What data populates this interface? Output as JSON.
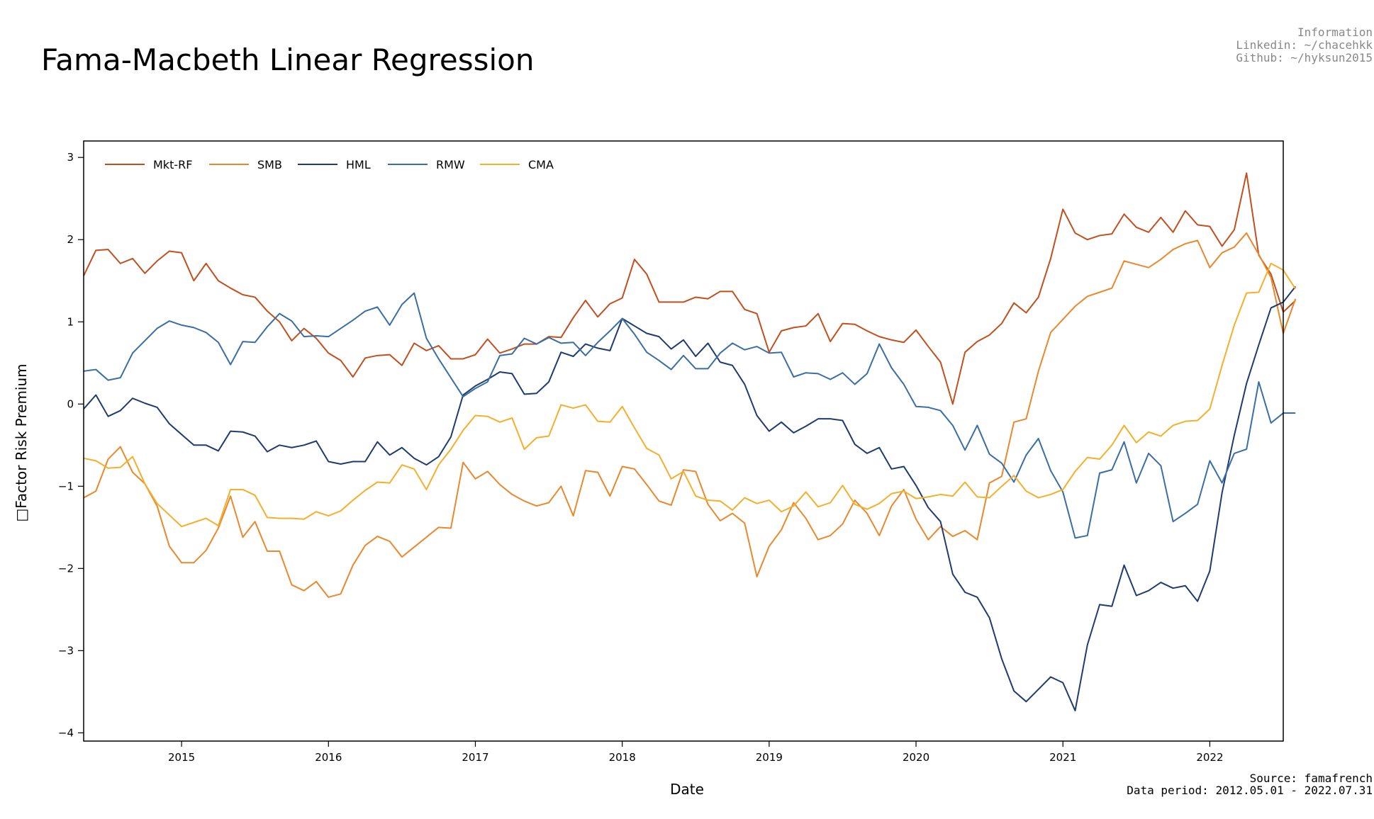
{
  "title": "Fama-Macbeth Linear Regression",
  "info": {
    "heading": "Information",
    "linkedin": "Linkedin: ~/chacehkk",
    "github": "Github: ~/hyksun2015"
  },
  "footer": {
    "source": "Source: famafrench",
    "period": "Data period: 2012.05.01 - 2022.07.31"
  },
  "chart_data": {
    "type": "line",
    "title": "Fama-Macbeth Linear Regression",
    "xlabel": "Date",
    "ylabel": "□Factor Risk Premium",
    "xlim": [
      "2014-05",
      "2022-07"
    ],
    "ylim": [
      -4.1,
      3.2
    ],
    "yticks": [
      3,
      2,
      1,
      0,
      -1,
      -2,
      -3,
      -4
    ],
    "ytick_labels": [
      "3",
      "2",
      "1",
      "0",
      "−1",
      "−2",
      "−3",
      "−4"
    ],
    "xticks": [
      "2015-01",
      "2016-01",
      "2017-01",
      "2018-01",
      "2019-01",
      "2020-01",
      "2021-01",
      "2022-01"
    ],
    "xtick_labels": [
      "2015",
      "2016",
      "2017",
      "2018",
      "2019",
      "2020",
      "2021",
      "2022"
    ],
    "x_start": "2014-05",
    "x_step": "1 month",
    "grid": false,
    "legend": "top-left",
    "series": [
      {
        "name": "Mkt-RF",
        "color": "#c0501f",
        "values": [
          1.56,
          1.87,
          1.88,
          1.71,
          1.77,
          1.59,
          1.74,
          1.86,
          1.84,
          1.5,
          1.71,
          1.5,
          1.41,
          1.33,
          1.3,
          1.13,
          1.0,
          0.77,
          0.92,
          0.8,
          0.62,
          0.53,
          0.33,
          0.56,
          0.59,
          0.6,
          0.47,
          0.74,
          0.65,
          0.71,
          0.55,
          0.55,
          0.6,
          0.79,
          0.62,
          0.67,
          0.73,
          0.73,
          0.82,
          0.81,
          1.05,
          1.26,
          1.06,
          1.22,
          1.29,
          1.76,
          1.58,
          1.24,
          1.24,
          1.24,
          1.3,
          1.28,
          1.37,
          1.37,
          1.15,
          1.1,
          0.63,
          0.89,
          0.93,
          0.95,
          1.1,
          0.76,
          0.98,
          0.97,
          0.89,
          0.82,
          0.78,
          0.75,
          0.9,
          0.7,
          0.51,
          0.0,
          0.63,
          0.76,
          0.84,
          0.98,
          1.23,
          1.11,
          1.3,
          1.77,
          2.37,
          2.08,
          2.0,
          2.05,
          2.07,
          2.31,
          2.15,
          2.09,
          2.27,
          2.09,
          2.35,
          2.18,
          2.16,
          1.92,
          2.12,
          2.81,
          1.81,
          1.58,
          1.12,
          1.26
        ]
      },
      {
        "name": "SMB",
        "color": "#e8892e",
        "values": [
          -1.14,
          -1.06,
          -0.67,
          -0.52,
          -0.83,
          -0.97,
          -1.24,
          -1.73,
          -1.93,
          -1.93,
          -1.78,
          -1.51,
          -1.12,
          -1.62,
          -1.43,
          -1.79,
          -1.79,
          -2.2,
          -2.27,
          -2.16,
          -2.35,
          -2.31,
          -1.96,
          -1.72,
          -1.61,
          -1.67,
          -1.86,
          -1.74,
          -1.62,
          -1.5,
          -1.51,
          -0.71,
          -0.91,
          -0.82,
          -0.98,
          -1.1,
          -1.18,
          -1.24,
          -1.2,
          -1.0,
          -1.36,
          -0.81,
          -0.83,
          -1.12,
          -0.76,
          -0.79,
          -0.98,
          -1.18,
          -1.23,
          -0.8,
          -0.82,
          -1.22,
          -1.42,
          -1.33,
          -1.45,
          -2.1,
          -1.73,
          -1.53,
          -1.2,
          -1.39,
          -1.65,
          -1.6,
          -1.46,
          -1.17,
          -1.33,
          -1.6,
          -1.24,
          -1.04,
          -1.4,
          -1.65,
          -1.49,
          -1.61,
          -1.54,
          -1.65,
          -0.96,
          -0.88,
          -0.22,
          -0.18,
          0.4,
          0.87,
          1.03,
          1.19,
          1.31,
          1.36,
          1.41,
          1.74,
          1.7,
          1.66,
          1.76,
          1.88,
          1.95,
          1.99,
          1.66,
          1.84,
          1.91,
          2.08,
          1.82,
          1.54,
          0.86,
          1.28
        ]
      },
      {
        "name": "HML",
        "color": "#1f3b6f",
        "values": [
          -0.06,
          0.11,
          -0.15,
          -0.08,
          0.07,
          0.01,
          -0.04,
          -0.24,
          -0.37,
          -0.5,
          -0.5,
          -0.57,
          -0.33,
          -0.34,
          -0.39,
          -0.58,
          -0.5,
          -0.53,
          -0.5,
          -0.45,
          -0.7,
          -0.73,
          -0.7,
          -0.7,
          -0.46,
          -0.62,
          -0.53,
          -0.66,
          -0.74,
          -0.64,
          -0.4,
          0.11,
          0.22,
          0.3,
          0.39,
          0.37,
          0.12,
          0.13,
          0.27,
          0.63,
          0.58,
          0.73,
          0.68,
          0.65,
          1.04,
          0.95,
          0.86,
          0.82,
          0.67,
          0.78,
          0.58,
          0.74,
          0.51,
          0.47,
          0.24,
          -0.14,
          -0.33,
          -0.22,
          -0.35,
          -0.27,
          -0.18,
          -0.18,
          -0.2,
          -0.49,
          -0.6,
          -0.53,
          -0.79,
          -0.76,
          -0.99,
          -1.26,
          -1.43,
          -2.07,
          -2.29,
          -2.35,
          -2.6,
          -3.1,
          -3.49,
          -3.62,
          -3.47,
          -3.32,
          -3.39,
          -3.73,
          -2.93,
          -2.44,
          -2.46,
          -1.96,
          -2.33,
          -2.27,
          -2.17,
          -2.24,
          -2.21,
          -2.4,
          -2.03,
          -1.08,
          -0.38,
          0.25,
          0.72,
          1.17,
          1.24,
          1.43
        ]
      },
      {
        "name": "RMW",
        "color": "#3a6ea5",
        "values": [
          0.4,
          0.42,
          0.29,
          0.32,
          0.62,
          0.77,
          0.92,
          1.01,
          0.96,
          0.93,
          0.87,
          0.75,
          0.48,
          0.76,
          0.75,
          0.94,
          1.1,
          1.01,
          0.82,
          0.83,
          0.82,
          0.92,
          1.02,
          1.13,
          1.18,
          0.96,
          1.21,
          1.35,
          0.8,
          0.55,
          0.32,
          0.09,
          0.19,
          0.27,
          0.59,
          0.61,
          0.8,
          0.73,
          0.81,
          0.74,
          0.75,
          0.59,
          0.75,
          0.89,
          1.04,
          0.85,
          0.63,
          0.53,
          0.42,
          0.59,
          0.43,
          0.43,
          0.62,
          0.74,
          0.66,
          0.7,
          0.62,
          0.63,
          0.33,
          0.38,
          0.37,
          0.3,
          0.38,
          0.24,
          0.37,
          0.73,
          0.44,
          0.24,
          -0.03,
          -0.04,
          -0.08,
          -0.26,
          -0.56,
          -0.26,
          -0.61,
          -0.72,
          -0.95,
          -0.62,
          -0.42,
          -0.81,
          -1.07,
          -1.63,
          -1.6,
          -0.84,
          -0.8,
          -0.46,
          -0.96,
          -0.6,
          -0.75,
          -1.43,
          -1.33,
          -1.22,
          -0.69,
          -0.96,
          -0.6,
          -0.55,
          0.27,
          -0.23,
          -0.11,
          -0.11
        ]
      },
      {
        "name": "CMA",
        "color": "#f2b02c",
        "values": [
          -0.66,
          -0.69,
          -0.78,
          -0.77,
          -0.64,
          -0.97,
          -1.21,
          -1.35,
          -1.49,
          -1.44,
          -1.39,
          -1.48,
          -1.04,
          -1.04,
          -1.11,
          -1.38,
          -1.39,
          -1.39,
          -1.4,
          -1.31,
          -1.36,
          -1.3,
          -1.17,
          -1.05,
          -0.95,
          -0.96,
          -0.74,
          -0.79,
          -1.04,
          -0.74,
          -0.55,
          -0.32,
          -0.14,
          -0.15,
          -0.22,
          -0.17,
          -0.55,
          -0.41,
          -0.39,
          -0.01,
          -0.05,
          -0.01,
          -0.21,
          -0.22,
          -0.03,
          -0.29,
          -0.54,
          -0.62,
          -0.91,
          -0.82,
          -1.12,
          -1.17,
          -1.18,
          -1.29,
          -1.14,
          -1.21,
          -1.17,
          -1.31,
          -1.24,
          -1.07,
          -1.25,
          -1.2,
          -0.99,
          -1.22,
          -1.28,
          -1.21,
          -1.09,
          -1.06,
          -1.15,
          -1.13,
          -1.1,
          -1.12,
          -0.95,
          -1.13,
          -1.14,
          -1.0,
          -0.87,
          -1.06,
          -1.14,
          -1.1,
          -1.04,
          -0.82,
          -0.65,
          -0.67,
          -0.5,
          -0.26,
          -0.47,
          -0.34,
          -0.39,
          -0.26,
          -0.21,
          -0.2,
          -0.06,
          0.47,
          0.96,
          1.35,
          1.36,
          1.71,
          1.63,
          1.4
        ]
      }
    ]
  }
}
